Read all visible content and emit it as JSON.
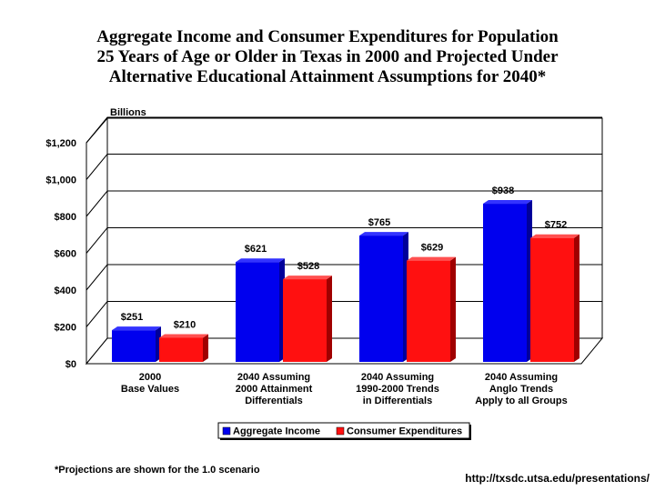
{
  "chart_data": {
    "type": "bar",
    "title": [
      "Aggregate Income and Consumer Expenditures for Population",
      "25 Years of Age or Older in Texas in 2000 and Projected Under",
      "Alternative Educational Attainment Assumptions for 2040*"
    ],
    "ylabel": "Billions",
    "ylim": [
      0,
      1200
    ],
    "yticks": [
      0,
      200,
      400,
      600,
      800,
      1000,
      1200
    ],
    "ytick_labels": [
      "$0",
      "$200",
      "$400",
      "$600",
      "$800",
      "$1,000",
      "$1,200"
    ],
    "categories": [
      [
        "2000",
        "Base Values"
      ],
      [
        "2040 Assuming",
        "2000 Attainment",
        "Differentials"
      ],
      [
        "2040 Assuming",
        "1990-2000 Trends",
        "in Differentials"
      ],
      [
        "2040 Assuming",
        "Anglo Trends",
        "Apply to all Groups"
      ]
    ],
    "series": [
      {
        "name": "Aggregate Income",
        "color": "#0000ee",
        "values": [
          251,
          621,
          765,
          938
        ],
        "labels": [
          "$251",
          "$621",
          "$765",
          "$938"
        ]
      },
      {
        "name": "Consumer Expenditures",
        "color": "#ff1010",
        "values": [
          210,
          528,
          629,
          752
        ],
        "labels": [
          "$210",
          "$528",
          "$629",
          "$752"
        ]
      }
    ],
    "grid": true,
    "legend": "bottom",
    "footnote": "*Projections are shown for the 1.0 scenario",
    "source_url": "http://txsdc.utsa.edu/presentations/"
  }
}
